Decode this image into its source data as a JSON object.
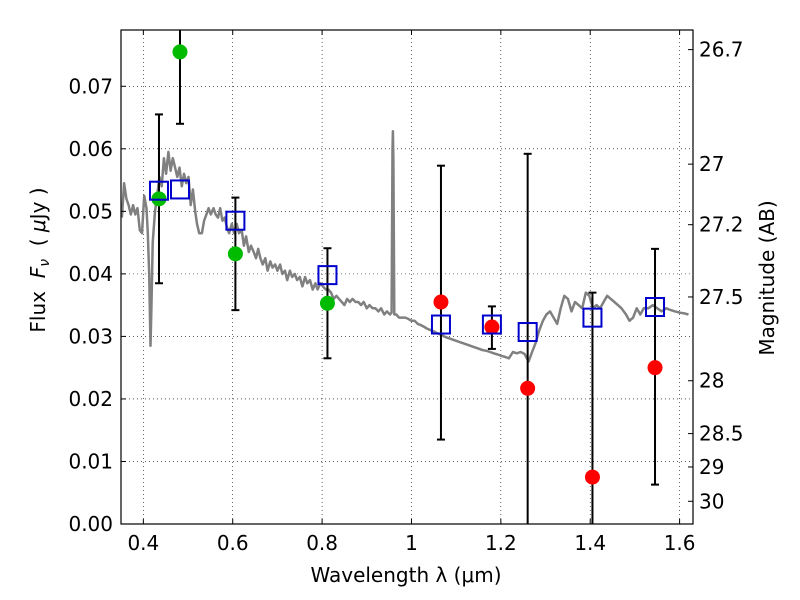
{
  "chart_data": {
    "type": "scatter",
    "xlabel": "Wavelength  λ (μm)",
    "ylabel_parts": [
      "Flux  ",
      "F",
      "ν",
      "  ( ",
      "μ",
      "Jy )"
    ],
    "ylabel_right": "Magnitude (AB)",
    "xlim": [
      0.35,
      1.63
    ],
    "ylim": [
      0.0,
      0.079
    ],
    "grid": true,
    "x_ticks": [
      {
        "value": 0.4,
        "label": "0.4"
      },
      {
        "value": 0.6,
        "label": "0.6"
      },
      {
        "value": 0.8,
        "label": "0.8"
      },
      {
        "value": 1.0,
        "label": "1"
      },
      {
        "value": 1.2,
        "label": "1.2"
      },
      {
        "value": 1.4,
        "label": "1.4"
      },
      {
        "value": 1.6,
        "label": "1.6"
      }
    ],
    "y_ticks": [
      {
        "value": 0.0,
        "label": "0.00"
      },
      {
        "value": 0.01,
        "label": "0.01"
      },
      {
        "value": 0.02,
        "label": "0.02"
      },
      {
        "value": 0.03,
        "label": "0.03"
      },
      {
        "value": 0.04,
        "label": "0.04"
      },
      {
        "value": 0.05,
        "label": "0.05"
      },
      {
        "value": 0.06,
        "label": "0.06"
      },
      {
        "value": 0.07,
        "label": "0.07"
      }
    ],
    "right_ticks": [
      {
        "mag": 26.7,
        "label": "26.7"
      },
      {
        "mag": 27.0,
        "label": "27"
      },
      {
        "mag": 27.2,
        "label": "27.2"
      },
      {
        "mag": 27.5,
        "label": "27.5"
      },
      {
        "mag": 28.0,
        "label": "28"
      },
      {
        "mag": 28.5,
        "label": "28.5"
      },
      {
        "mag": 29.0,
        "label": "29"
      },
      {
        "mag": 30.0,
        "label": "30"
      }
    ],
    "colors": {
      "spectrum": "#808080",
      "detections": "#00bb00",
      "upper_limits": "#ff0000",
      "model": "#0000cc",
      "errorbars": "#000000"
    },
    "spectrum": [
      [
        0.352,
        0.049
      ],
      [
        0.357,
        0.0545
      ],
      [
        0.362,
        0.052
      ],
      [
        0.367,
        0.051
      ],
      [
        0.372,
        0.0495
      ],
      [
        0.377,
        0.051
      ],
      [
        0.382,
        0.0495
      ],
      [
        0.387,
        0.0505
      ],
      [
        0.392,
        0.047
      ],
      [
        0.397,
        0.0465
      ],
      [
        0.402,
        0.0525
      ],
      [
        0.407,
        0.0505
      ],
      [
        0.41,
        0.0465
      ],
      [
        0.413,
        0.04
      ],
      [
        0.416,
        0.0285
      ],
      [
        0.418,
        0.0345
      ],
      [
        0.421,
        0.045
      ],
      [
        0.426,
        0.05
      ],
      [
        0.431,
        0.0525
      ],
      [
        0.436,
        0.0555
      ],
      [
        0.441,
        0.054
      ],
      [
        0.446,
        0.0585
      ],
      [
        0.451,
        0.056
      ],
      [
        0.456,
        0.0595
      ],
      [
        0.461,
        0.0565
      ],
      [
        0.466,
        0.0585
      ],
      [
        0.471,
        0.057
      ],
      [
        0.476,
        0.0555
      ],
      [
        0.481,
        0.057
      ],
      [
        0.486,
        0.054
      ],
      [
        0.491,
        0.056
      ],
      [
        0.496,
        0.0545
      ],
      [
        0.501,
        0.0555
      ],
      [
        0.506,
        0.051
      ],
      [
        0.511,
        0.0535
      ],
      [
        0.516,
        0.05
      ],
      [
        0.52,
        0.048
      ],
      [
        0.525,
        0.0465
      ],
      [
        0.531,
        0.0465
      ],
      [
        0.536,
        0.0485
      ],
      [
        0.541,
        0.0495
      ],
      [
        0.546,
        0.0505
      ],
      [
        0.551,
        0.0495
      ],
      [
        0.557,
        0.0505
      ],
      [
        0.562,
        0.0495
      ],
      [
        0.567,
        0.049
      ],
      [
        0.572,
        0.0505
      ],
      [
        0.577,
        0.0485
      ],
      [
        0.582,
        0.049
      ],
      [
        0.587,
        0.0475
      ],
      [
        0.592,
        0.0465
      ],
      [
        0.598,
        0.048
      ],
      [
        0.603,
        0.0465
      ],
      [
        0.609,
        0.048
      ],
      [
        0.614,
        0.0465
      ],
      [
        0.62,
        0.047
      ],
      [
        0.625,
        0.0445
      ],
      [
        0.63,
        0.046
      ],
      [
        0.636,
        0.0435
      ],
      [
        0.641,
        0.0445
      ],
      [
        0.647,
        0.0435
      ],
      [
        0.652,
        0.0425
      ],
      [
        0.657,
        0.044
      ],
      [
        0.662,
        0.0425
      ],
      [
        0.667,
        0.0415
      ],
      [
        0.673,
        0.0425
      ],
      [
        0.678,
        0.0405
      ],
      [
        0.684,
        0.042
      ],
      [
        0.689,
        0.041
      ],
      [
        0.695,
        0.0415
      ],
      [
        0.7,
        0.0405
      ],
      [
        0.706,
        0.0415
      ],
      [
        0.711,
        0.04
      ],
      [
        0.717,
        0.0405
      ],
      [
        0.722,
        0.039
      ],
      [
        0.728,
        0.0405
      ],
      [
        0.733,
        0.0395
      ],
      [
        0.739,
        0.04
      ],
      [
        0.744,
        0.039
      ],
      [
        0.75,
        0.0395
      ],
      [
        0.756,
        0.038
      ],
      [
        0.762,
        0.0395
      ],
      [
        0.767,
        0.0385
      ],
      [
        0.773,
        0.039
      ],
      [
        0.779,
        0.0375
      ],
      [
        0.785,
        0.0385
      ],
      [
        0.79,
        0.0375
      ],
      [
        0.796,
        0.0385
      ],
      [
        0.802,
        0.038
      ],
      [
        0.808,
        0.0375
      ],
      [
        0.814,
        0.0375
      ],
      [
        0.82,
        0.037
      ],
      [
        0.826,
        0.036
      ],
      [
        0.832,
        0.0365
      ],
      [
        0.838,
        0.036
      ],
      [
        0.844,
        0.0355
      ],
      [
        0.85,
        0.035
      ],
      [
        0.856,
        0.036
      ],
      [
        0.862,
        0.0355
      ],
      [
        0.868,
        0.036
      ],
      [
        0.875,
        0.0355
      ],
      [
        0.881,
        0.0355
      ],
      [
        0.887,
        0.035
      ],
      [
        0.893,
        0.0355
      ],
      [
        0.9,
        0.0345
      ],
      [
        0.906,
        0.035
      ],
      [
        0.913,
        0.0345
      ],
      [
        0.919,
        0.0345
      ],
      [
        0.926,
        0.034
      ],
      [
        0.932,
        0.0345
      ],
      [
        0.939,
        0.0335
      ],
      [
        0.945,
        0.034
      ],
      [
        0.952,
        0.0335
      ],
      [
        0.9555,
        0.0338
      ],
      [
        0.9575,
        0.06
      ],
      [
        0.9585,
        0.0628
      ],
      [
        0.9595,
        0.058
      ],
      [
        0.9615,
        0.0335
      ],
      [
        0.966,
        0.0335
      ],
      [
        0.972,
        0.033
      ],
      [
        0.979,
        0.033
      ],
      [
        0.986,
        0.033
      ],
      [
        0.993,
        0.0328
      ],
      [
        1.0,
        0.0325
      ],
      [
        1.007,
        0.0325
      ],
      [
        1.014,
        0.032
      ],
      [
        1.021,
        0.0318
      ],
      [
        1.029,
        0.0315
      ],
      [
        1.036,
        0.0312
      ],
      [
        1.043,
        0.031
      ],
      [
        1.05,
        0.0308
      ],
      [
        1.058,
        0.0305
      ],
      [
        1.065,
        0.0303
      ],
      [
        1.073,
        0.03
      ],
      [
        1.08,
        0.0298
      ],
      [
        1.088,
        0.0296
      ],
      [
        1.096,
        0.0294
      ],
      [
        1.104,
        0.0292
      ],
      [
        1.112,
        0.029
      ],
      [
        1.12,
        0.0288
      ],
      [
        1.128,
        0.0286
      ],
      [
        1.136,
        0.0284
      ],
      [
        1.144,
        0.0282
      ],
      [
        1.152,
        0.028
      ],
      [
        1.16,
        0.0278
      ],
      [
        1.168,
        0.0277
      ],
      [
        1.176,
        0.0275
      ],
      [
        1.184,
        0.0273
      ],
      [
        1.193,
        0.0271
      ],
      [
        1.201,
        0.0269
      ],
      [
        1.21,
        0.0267
      ],
      [
        1.218,
        0.0265
      ],
      [
        1.227,
        0.0275
      ],
      [
        1.236,
        0.0273
      ],
      [
        1.244,
        0.0275
      ],
      [
        1.253,
        0.0272
      ],
      [
        1.262,
        0.026
      ],
      [
        1.27,
        0.0275
      ],
      [
        1.278,
        0.029
      ],
      [
        1.286,
        0.031
      ],
      [
        1.294,
        0.0325
      ],
      [
        1.302,
        0.0335
      ],
      [
        1.31,
        0.034
      ],
      [
        1.318,
        0.033
      ],
      [
        1.326,
        0.032
      ],
      [
        1.334,
        0.0345
      ],
      [
        1.342,
        0.0365
      ],
      [
        1.35,
        0.036
      ],
      [
        1.358,
        0.034
      ],
      [
        1.366,
        0.0355
      ],
      [
        1.374,
        0.035
      ],
      [
        1.382,
        0.0345
      ],
      [
        1.39,
        0.037
      ],
      [
        1.398,
        0.0365
      ],
      [
        1.406,
        0.0345
      ],
      [
        1.414,
        0.035
      ],
      [
        1.422,
        0.0345
      ],
      [
        1.43,
        0.0355
      ],
      [
        1.438,
        0.0365
      ],
      [
        1.446,
        0.036
      ],
      [
        1.454,
        0.0355
      ],
      [
        1.462,
        0.035
      ],
      [
        1.47,
        0.0345
      ],
      [
        1.48,
        0.0335
      ],
      [
        1.488,
        0.0325
      ],
      [
        1.496,
        0.033
      ],
      [
        1.504,
        0.0345
      ],
      [
        1.512,
        0.0335
      ],
      [
        1.52,
        0.0345
      ],
      [
        1.53,
        0.0345
      ],
      [
        1.54,
        0.035
      ],
      [
        1.55,
        0.0345
      ],
      [
        1.56,
        0.034
      ],
      [
        1.57,
        0.0345
      ],
      [
        1.58,
        0.0342
      ],
      [
        1.59,
        0.034
      ],
      [
        1.6,
        0.0338
      ],
      [
        1.61,
        0.0337
      ],
      [
        1.62,
        0.0335
      ]
    ],
    "detections": [
      {
        "x": 0.435,
        "y": 0.052,
        "yerr_low": 0.0385,
        "yerr_high": 0.0655
      },
      {
        "x": 0.482,
        "y": 0.0755,
        "yerr_low": 0.064,
        "yerr_high": 0.0805
      },
      {
        "x": 0.606,
        "y": 0.0432,
        "yerr_low": 0.0342,
        "yerr_high": 0.0522
      },
      {
        "x": 0.812,
        "y": 0.0353,
        "yerr_low": 0.0265,
        "yerr_high": 0.0441
      }
    ],
    "upper_limits": [
      {
        "x": 1.066,
        "y": 0.0355,
        "yerr_low": 0.0135,
        "yerr_high": 0.0573
      },
      {
        "x": 1.18,
        "y": 0.0315,
        "yerr_low": 0.028,
        "yerr_high": 0.0348
      },
      {
        "x": 1.26,
        "y": 0.0217,
        "yerr_low": 0.0,
        "yerr_high": 0.0592
      },
      {
        "x": 1.405,
        "y": 0.0075,
        "yerr_low": 0.0,
        "yerr_high": 0.037
      },
      {
        "x": 1.545,
        "y": 0.025,
        "yerr_low": 0.0063,
        "yerr_high": 0.044
      }
    ],
    "model": [
      {
        "x": 0.435,
        "y": 0.0533
      },
      {
        "x": 0.482,
        "y": 0.0535
      },
      {
        "x": 0.606,
        "y": 0.0485
      },
      {
        "x": 0.812,
        "y": 0.0398
      },
      {
        "x": 1.066,
        "y": 0.0319
      },
      {
        "x": 1.18,
        "y": 0.0319
      },
      {
        "x": 1.26,
        "y": 0.0307
      },
      {
        "x": 1.405,
        "y": 0.033
      },
      {
        "x": 1.545,
        "y": 0.0347
      }
    ]
  }
}
